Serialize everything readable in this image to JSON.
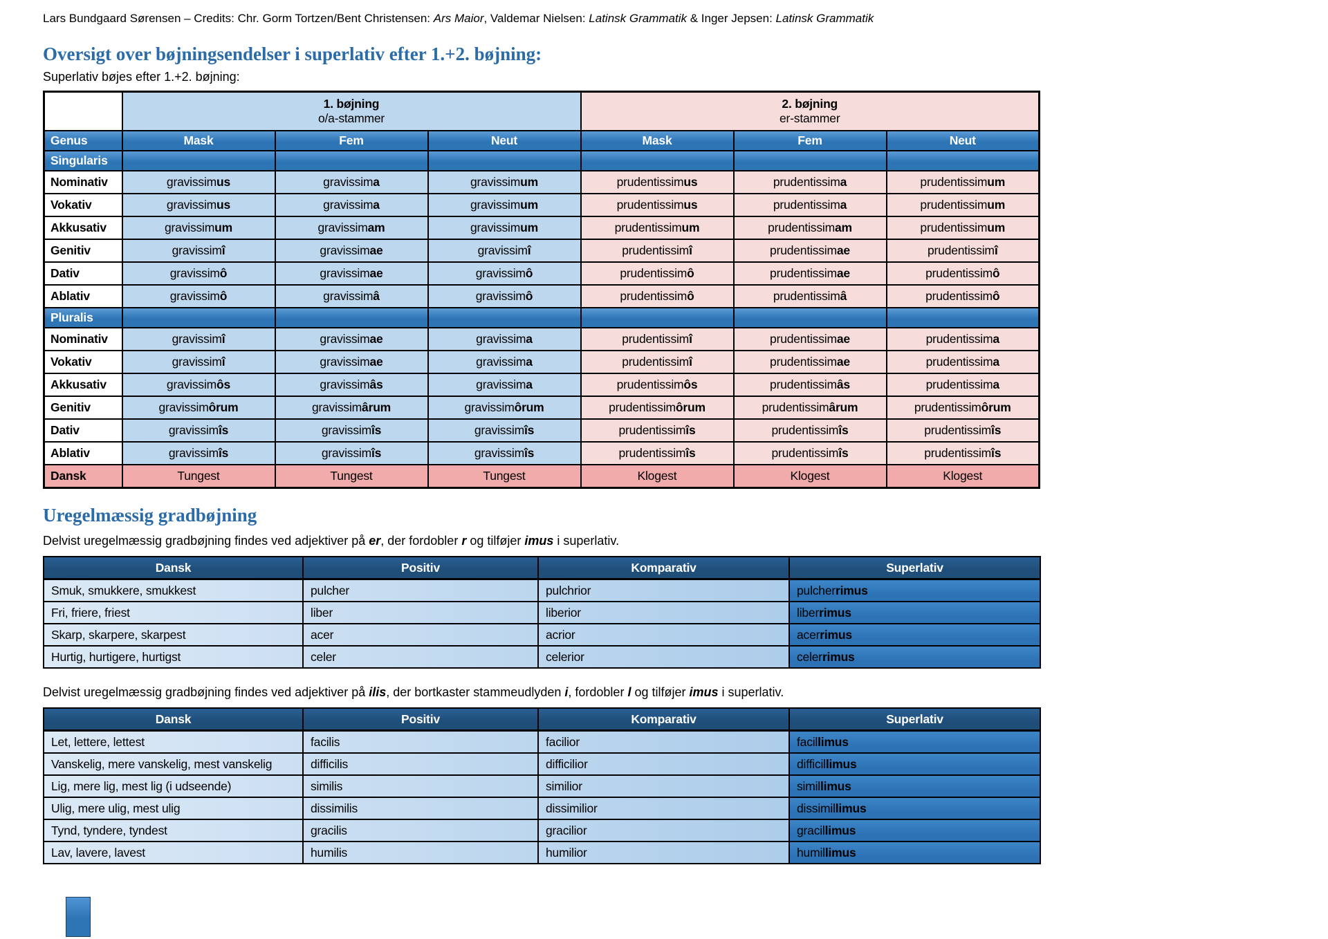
{
  "colors": {
    "accent_blue": "#2E75B6",
    "dark_header_blue": "#1F4E79",
    "light_blue": "#BDD7EE",
    "light_pink": "#F6DDDC",
    "salmon": "#F2ABAB",
    "row_grad_start": "#DCE9F6",
    "row_grad_end": "#9CC3E6",
    "sup_cell_blue": "#2E78BC",
    "heading_blue": "#2A6BA8"
  },
  "credits": {
    "segments": [
      {
        "t": "Lars Bundgaard Sørensen – Credits: Chr. Gorm Tortzen/Bent Christensen: "
      },
      {
        "t": "Ars Maior",
        "i": true
      },
      {
        "t": ", Valdemar Nielsen: "
      },
      {
        "t": "Latinsk Grammatik",
        "i": true
      },
      {
        "t": " & Inger Jepsen: "
      },
      {
        "t": "Latinsk Grammatik",
        "i": true
      }
    ]
  },
  "section1": {
    "heading": "Oversigt over bøjningsendelser i superlativ efter 1.+2. bøjning:",
    "subtitle": "Superlativ bøjes efter 1.+2. bøjning:"
  },
  "main_table": {
    "corner": "",
    "groups": [
      {
        "title": "1. bøjning",
        "subtitle": "o/a-stammer"
      },
      {
        "title": "2. bøjning",
        "subtitle": "er-stammer"
      }
    ],
    "genus": {
      "label": "Genus",
      "columns": [
        "Mask",
        "Fem",
        "Neut",
        "Mask",
        "Fem",
        "Neut"
      ]
    },
    "sections": [
      {
        "label": "Singularis",
        "rows": [
          {
            "label": "Nominativ",
            "cells": [
              "gravissim|us",
              "gravissim|a",
              "gravissim|um",
              "prudentissim|us",
              "prudentissim|a",
              "prudentissim|um"
            ]
          },
          {
            "label": "Vokativ",
            "cells": [
              "gravissim|us",
              "gravissim|a",
              "gravissim|um",
              "prudentissim|us",
              "prudentissim|a",
              "prudentissim|um"
            ]
          },
          {
            "label": "Akkusativ",
            "cells": [
              "gravissim|um",
              "gravissim|am",
              "gravissim|um",
              "prudentissim|um",
              "prudentissim|am",
              "prudentissim|um"
            ]
          },
          {
            "label": "Genitiv",
            "cells": [
              "gravissim|î",
              "gravissim|ae",
              "gravissim|î",
              "prudentissim|î",
              "prudentissim|ae",
              "prudentissim|î"
            ]
          },
          {
            "label": "Dativ",
            "cells": [
              "gravissim|ô",
              "gravissim|ae",
              "gravissim|ô",
              "prudentissim|ô",
              "prudentissim|ae",
              "prudentissim|ô"
            ]
          },
          {
            "label": "Ablativ",
            "cells": [
              "gravissim|ô",
              "gravissim|â",
              "gravissim|ô",
              "prudentissim|ô",
              "prudentissim|â",
              "prudentissim|ô"
            ]
          }
        ]
      },
      {
        "label": "Pluralis",
        "rows": [
          {
            "label": "Nominativ",
            "cells": [
              "gravissim|î",
              "gravissim|ae",
              "gravissim|a",
              "prudentissim|î",
              "prudentissim|ae",
              "prudentissim|a"
            ]
          },
          {
            "label": "Vokativ",
            "cells": [
              "gravissim|î",
              "gravissim|ae",
              "gravissim|a",
              "prudentissim|î",
              "prudentissim|ae",
              "prudentissim|a"
            ]
          },
          {
            "label": "Akkusativ",
            "cells": [
              "gravissim|ôs",
              "gravissim|âs",
              "gravissim|a",
              "prudentissim|ôs",
              "prudentissim|âs",
              "prudentissim|a"
            ]
          },
          {
            "label": "Genitiv",
            "cells": [
              "gravissim|ôrum",
              "gravissim|ârum",
              "gravissim|ôrum",
              "prudentissim|ôrum",
              "prudentissim|ârum",
              "prudentissim|ôrum"
            ]
          },
          {
            "label": "Dativ",
            "cells": [
              "gravissim|îs",
              "gravissim|îs",
              "gravissim|îs",
              "prudentissim|îs",
              "prudentissim|îs",
              "prudentissim|îs"
            ]
          },
          {
            "label": "Ablativ",
            "cells": [
              "gravissim|îs",
              "gravissim|îs",
              "gravissim|îs",
              "prudentissim|îs",
              "prudentissim|îs",
              "prudentissim|îs"
            ]
          }
        ]
      }
    ],
    "dansk": {
      "label": "Dansk",
      "cells": [
        "Tungest",
        "Tungest",
        "Tungest",
        "Klogest",
        "Klogest",
        "Klogest"
      ]
    }
  },
  "section2": {
    "heading": "Uregelmæssig gradbøjning",
    "para1_segments": [
      {
        "t": "Delvist uregelmæssig gradbøjning findes ved adjektiver på "
      },
      {
        "t": "er",
        "bi": true
      },
      {
        "t": ", der fordobler "
      },
      {
        "t": "r",
        "bi": true
      },
      {
        "t": " og tilføjer "
      },
      {
        "t": "imus",
        "bi": true
      },
      {
        "t": " i superlativ."
      }
    ],
    "table_er": {
      "headers": [
        "Dansk",
        "Positiv",
        "Komparativ",
        "Superlativ"
      ],
      "rows": [
        [
          "Smuk, smukkere, smukkest",
          "pulcher",
          "pulchrior",
          "pulcher|rimus"
        ],
        [
          "Fri, friere, friest",
          "liber",
          "liberior",
          "liber|rimus"
        ],
        [
          "Skarp, skarpere, skarpest",
          "acer",
          "acrior",
          "acer|rimus"
        ],
        [
          "Hurtig, hurtigere, hurtigst",
          "celer",
          "celerior",
          "celer|rimus"
        ]
      ]
    },
    "para2_segments": [
      {
        "t": "Delvist uregelmæssig gradbøjning findes ved adjektiver på "
      },
      {
        "t": "ilis",
        "bi": true
      },
      {
        "t": ", der bortkaster stammeudlyden "
      },
      {
        "t": "i",
        "bi": true
      },
      {
        "t": ", fordobler "
      },
      {
        "t": "l",
        "bi": true
      },
      {
        "t": " og tilføjer "
      },
      {
        "t": "imus",
        "bi": true
      },
      {
        "t": " i superlativ."
      }
    ],
    "table_ilis": {
      "headers": [
        "Dansk",
        "Positiv",
        "Komparativ",
        "Superlativ"
      ],
      "rows": [
        [
          "Let, lettere, lettest",
          "facilis",
          "facilior",
          "facil|limus"
        ],
        [
          "Vanskelig, mere vanskelig, mest vanskelig",
          "difficilis",
          "difficilior",
          "difficil|limus"
        ],
        [
          "Lig, mere lig, mest lig (i udseende)",
          "similis",
          "similior",
          "simil|limus"
        ],
        [
          "Ulig, mere ulig, mest ulig",
          "dissimilis",
          "dissimilior",
          "dissimil|limus"
        ],
        [
          "Tynd, tyndere, tyndest",
          "gracilis",
          "gracilior",
          "gracil|limus"
        ],
        [
          "Lav, lavere, lavest",
          "humilis",
          "humilior",
          "humil|limus"
        ]
      ]
    }
  }
}
